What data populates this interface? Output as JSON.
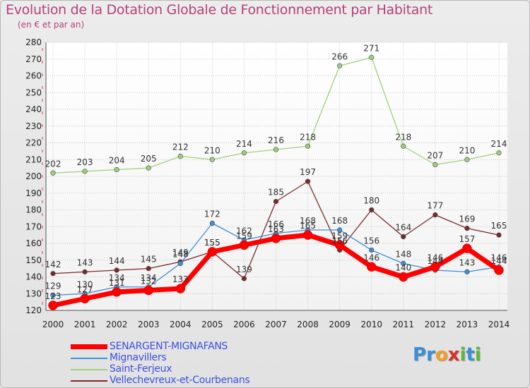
{
  "chart_data": {
    "type": "line",
    "title": "Evolution de la Dotation Globale de Fonctionnement par Habitant",
    "subtitle": "(en € et par an)",
    "xlabel": "",
    "ylabel": "",
    "categories": [
      "2000",
      "2001",
      "2002",
      "2003",
      "2004",
      "2005",
      "2006",
      "2007",
      "2008",
      "2009",
      "2010",
      "2011",
      "2012",
      "2013",
      "2014"
    ],
    "ylim": [
      120,
      280
    ],
    "yticks": [
      "120",
      "130",
      "140",
      "150",
      "160",
      "170",
      "180",
      "190",
      "200",
      "210",
      "220",
      "230",
      "240",
      "250",
      "260",
      "270",
      "280"
    ],
    "grid": true,
    "legend_position": "bottom-left",
    "series": [
      {
        "name": "SENARGENT-MIGNAFANS",
        "color": "#ff0000",
        "values": [
          123,
          127,
          131,
          132,
          133,
          155,
          159,
          163,
          165,
          159,
          146,
          140,
          146,
          157,
          144
        ],
        "labels": [
          "123",
          "127",
          "131",
          "132",
          "133",
          "155",
          "159",
          "163",
          "165",
          "159",
          "146",
          "140",
          "146",
          "157",
          "144"
        ]
      },
      {
        "name": "Mignavillers",
        "color": "#3d8fd6",
        "values": [
          129,
          130,
          134,
          134,
          148,
          172,
          162,
          166,
          168,
          168,
          156,
          148,
          144,
          143,
          146
        ],
        "labels": [
          "129",
          "130",
          "134",
          "134",
          "148",
          "172",
          "162",
          "166",
          "168",
          "168",
          "156",
          "148",
          "144",
          "143",
          "146"
        ]
      },
      {
        "name": "Saint-Ferjeux",
        "color": "#9ed07a",
        "values": [
          202,
          203,
          204,
          205,
          212,
          210,
          214,
          216,
          218,
          266,
          271,
          218,
          207,
          210,
          214
        ],
        "labels": [
          "202",
          "203",
          "204",
          "205",
          "212",
          "210",
          "214",
          "216",
          "218",
          "266",
          "271",
          "218",
          "207",
          "210",
          "214"
        ]
      },
      {
        "name": "Vellechevreux-et-Courbenans",
        "color": "#7a2a2a",
        "values": [
          142,
          143,
          144,
          145,
          149,
          155,
          139,
          185,
          197,
          156,
          180,
          164,
          177,
          169,
          165
        ],
        "labels": [
          "142",
          "143",
          "144",
          "145",
          "149",
          "155",
          "139",
          "185",
          "197",
          "156",
          "180",
          "164",
          "177",
          "169",
          "165"
        ]
      }
    ]
  },
  "logo_text": "Proxiti"
}
